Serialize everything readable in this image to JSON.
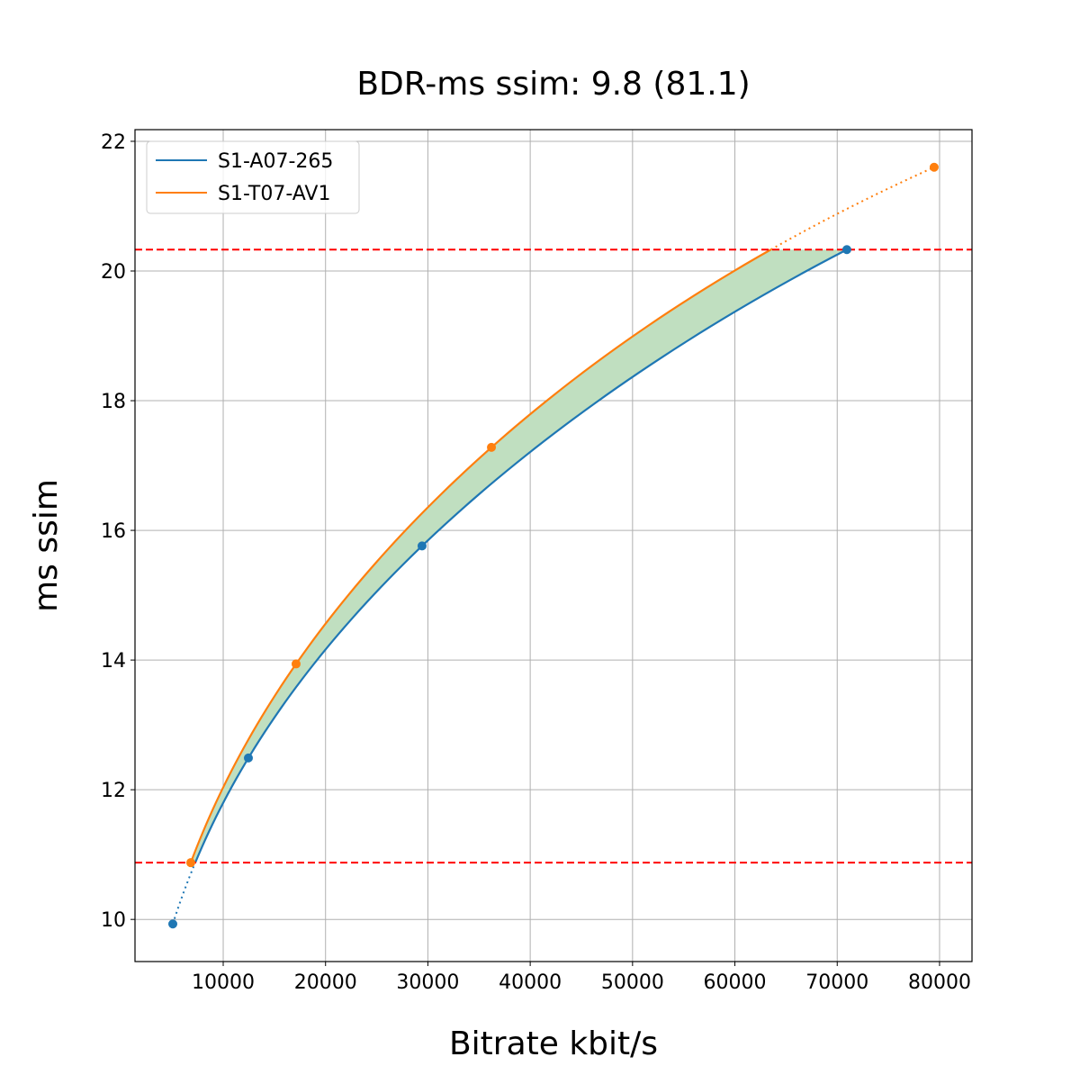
{
  "chart_data": {
    "type": "line",
    "title": "BDR-ms ssim: 9.8 (81.1)",
    "xlabel": "Bitrate kbit/s",
    "ylabel": "ms ssim",
    "xlim": [
      1380,
      83170
    ],
    "ylim": [
      9.35,
      22.18
    ],
    "xticks": [
      10000,
      20000,
      30000,
      40000,
      50000,
      60000,
      70000,
      80000
    ],
    "yticks": [
      10,
      12,
      14,
      16,
      18,
      20,
      22
    ],
    "grid": true,
    "legend_position": "top-left",
    "series": [
      {
        "name": "S1-A07-265",
        "color": "#1f77b4",
        "x": [
          5075,
          12460,
          29430,
          70940
        ],
        "y": [
          9.93,
          12.49,
          15.76,
          20.33
        ]
      },
      {
        "name": "S1-T07-AV1",
        "color": "#ff7f0e",
        "x": [
          6830,
          17120,
          36210,
          79470
        ],
        "y": [
          10.875,
          13.94,
          17.28,
          21.6
        ]
      }
    ],
    "reference_lines": {
      "y": [
        10.875,
        20.33
      ],
      "color": "#ff0000",
      "style": "dashed"
    },
    "fill_color": "#c0dfc0"
  }
}
